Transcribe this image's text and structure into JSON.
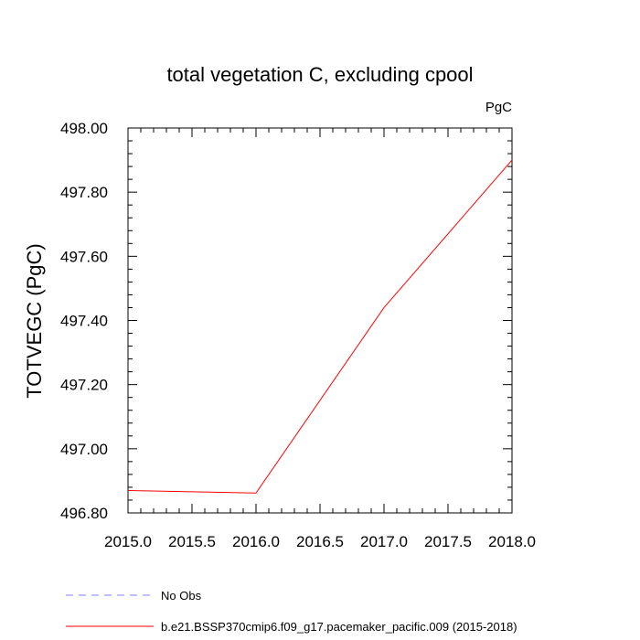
{
  "chart_data": {
    "type": "line",
    "title": "total vegetation C, excluding cpool",
    "units": "PgC",
    "xlabel": "",
    "ylabel": "TOTVEGC  (PgC)",
    "xlim": [
      2015.0,
      2018.0
    ],
    "ylim": [
      496.8,
      498.0
    ],
    "x_ticks": [
      "2015.0",
      "2015.5",
      "2016.0",
      "2016.5",
      "2017.0",
      "2017.5",
      "2018.0"
    ],
    "y_ticks": [
      "496.80",
      "497.00",
      "497.20",
      "497.40",
      "497.60",
      "497.80",
      "498.00"
    ],
    "grid": false,
    "legend_position": "bottom",
    "series": [
      {
        "name": "b.e21.BSSP370cmip6.f09_g17.pacemaker_pacific.009 (2015-2018)",
        "color": "#ff0000",
        "style": "solid",
        "x": [
          2015.0,
          2016.0,
          2017.0,
          2018.0
        ],
        "y": [
          496.87,
          496.862,
          497.44,
          497.9
        ]
      }
    ],
    "legend": [
      {
        "label": "No Obs",
        "color": "#8080ff",
        "style": "dashed"
      },
      {
        "label": "b.e21.BSSP370cmip6.f09_g17.pacemaker_pacific.009 (2015-2018)",
        "color": "#ff0000",
        "style": "solid"
      }
    ]
  }
}
